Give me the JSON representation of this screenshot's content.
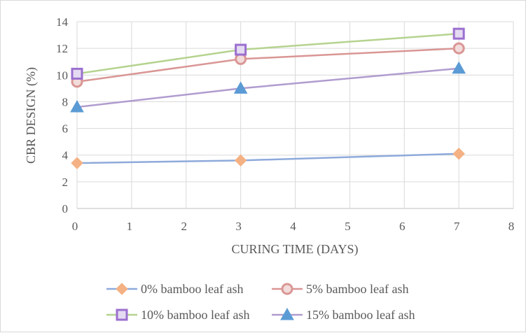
{
  "chart_data": {
    "type": "line",
    "title": "",
    "xlabel": "CURING TIME (DAYS)",
    "ylabel": "CBR  DESIGN (%)",
    "xlim": [
      0,
      8
    ],
    "ylim": [
      0,
      14
    ],
    "xticks": [
      0,
      1,
      2,
      3,
      4,
      5,
      6,
      7,
      8
    ],
    "yticks": [
      0,
      2,
      4,
      6,
      8,
      10,
      12,
      14
    ],
    "grid": true,
    "legend_position": "bottom",
    "series": [
      {
        "name": "0% bamboo leaf ash",
        "x": [
          0,
          3,
          7
        ],
        "y": [
          3.4,
          3.6,
          4.1
        ],
        "line_color": "#8eaadb",
        "marker": "diamond",
        "marker_color": "#f4b183"
      },
      {
        "name": "5% bamboo leaf ash",
        "x": [
          0,
          3,
          7
        ],
        "y": [
          9.5,
          11.2,
          12.0
        ],
        "line_color": "#d99694",
        "marker": "circle",
        "marker_color": "#d99694"
      },
      {
        "name": "10% bamboo leaf ash",
        "x": [
          0,
          3,
          7
        ],
        "y": [
          10.1,
          11.9,
          13.1
        ],
        "line_color": "#b5d38f",
        "marker": "square",
        "marker_color": "#9b6fcf"
      },
      {
        "name": "15% bamboo leaf ash",
        "x": [
          0,
          3,
          7
        ],
        "y": [
          7.6,
          9.0,
          10.5
        ],
        "line_color": "#b09ccf",
        "marker": "triangle",
        "marker_color": "#5b9bd5"
      }
    ]
  }
}
